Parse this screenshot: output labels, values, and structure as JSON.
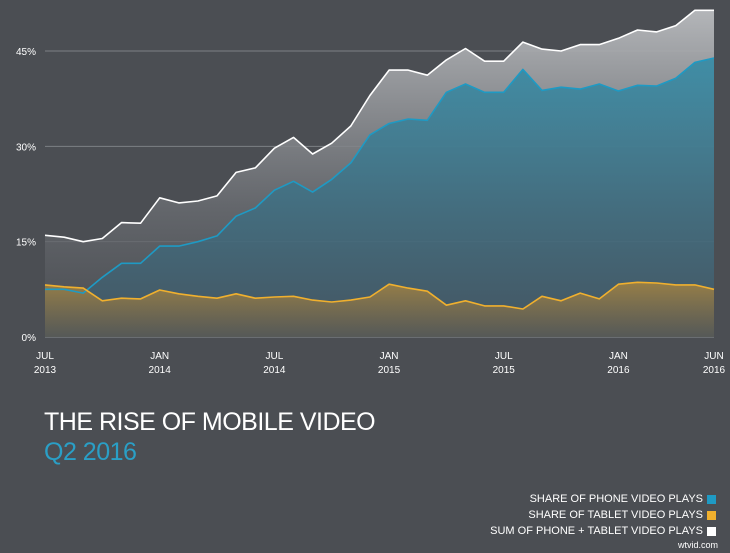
{
  "title": "THE RISE OF MOBILE VIDEO",
  "subtitle": "Q2 2016",
  "watermark": "wtvid.com",
  "chart_data": {
    "type": "area",
    "ylim": [
      0,
      51.4
    ],
    "yticks": [
      0,
      15,
      30,
      45
    ],
    "ytick_labels": [
      "0%",
      "15%",
      "30%",
      "45%"
    ],
    "grid": true,
    "legend_position": "bottom-right",
    "x": [
      "2013-07",
      "2013-08",
      "2013-09",
      "2013-10",
      "2013-11",
      "2013-12",
      "2014-01",
      "2014-02",
      "2014-03",
      "2014-04",
      "2014-05",
      "2014-06",
      "2014-07",
      "2014-08",
      "2014-09",
      "2014-10",
      "2014-11",
      "2014-12",
      "2015-01",
      "2015-02",
      "2015-03",
      "2015-04",
      "2015-05",
      "2015-06",
      "2015-07",
      "2015-08",
      "2015-09",
      "2015-10",
      "2015-11",
      "2015-12",
      "2016-01",
      "2016-02",
      "2016-03",
      "2016-04",
      "2016-05",
      "2016-06"
    ],
    "xticks": [
      {
        "index": 0,
        "line1": "JUL",
        "line2": "2013"
      },
      {
        "index": 6,
        "line1": "JAN",
        "line2": "2014"
      },
      {
        "index": 12,
        "line1": "JUL",
        "line2": "2014"
      },
      {
        "index": 18,
        "line1": "JAN",
        "line2": "2015"
      },
      {
        "index": 24,
        "line1": "JUL",
        "line2": "2015"
      },
      {
        "index": 30,
        "line1": "JAN",
        "line2": "2016"
      },
      {
        "index": 35,
        "line1": "JUN",
        "line2": "2016"
      }
    ],
    "series": [
      {
        "name": "SUM OF PHONE + TABLET VIDEO PLAYS",
        "color": "#ffffff",
        "values": [
          16.0,
          15.7,
          15.0,
          15.5,
          18.0,
          17.9,
          21.9,
          21.1,
          21.4,
          22.2,
          25.9,
          26.6,
          29.7,
          31.4,
          28.8,
          30.5,
          33.2,
          38.0,
          42.0,
          42.0,
          41.2,
          43.6,
          45.4,
          43.4,
          43.4,
          46.4,
          45.3,
          45.0,
          46.0,
          46.0,
          47.0,
          48.3,
          48.0,
          49.0,
          51.4,
          51.4
        ]
      },
      {
        "name": "SHARE OF PHONE VIDEO PLAYS",
        "color": "#1e9ac4",
        "values": [
          7.5,
          7.5,
          6.9,
          9.4,
          11.6,
          11.6,
          14.3,
          14.3,
          15.0,
          15.9,
          19.0,
          20.3,
          23.1,
          24.5,
          22.8,
          24.8,
          27.4,
          31.8,
          33.6,
          34.3,
          34.1,
          38.5,
          39.8,
          38.5,
          38.5,
          42.1,
          38.8,
          39.3,
          39.0,
          39.8,
          38.7,
          39.6,
          39.5,
          40.7,
          43.2,
          43.9
        ]
      },
      {
        "name": "SHARE OF TABLET VIDEO PLAYS",
        "color": "#f0b02e",
        "values": [
          8.2,
          7.9,
          7.7,
          5.7,
          6.1,
          6.0,
          7.4,
          6.8,
          6.4,
          6.1,
          6.8,
          6.1,
          6.3,
          6.4,
          5.8,
          5.5,
          5.8,
          6.3,
          8.3,
          7.7,
          7.2,
          5.0,
          5.7,
          4.9,
          4.9,
          4.4,
          6.4,
          5.7,
          6.9,
          6.0,
          8.3,
          8.6,
          8.5,
          8.2,
          8.2,
          7.5
        ]
      }
    ]
  },
  "legend": [
    {
      "label": "SHARE OF PHONE VIDEO PLAYS",
      "color": "#1e9ac4"
    },
    {
      "label": "SHARE OF TABLET VIDEO PLAYS",
      "color": "#f0b02e"
    },
    {
      "label": "SUM OF PHONE + TABLET VIDEO PLAYS",
      "color": "#ffffff"
    }
  ]
}
